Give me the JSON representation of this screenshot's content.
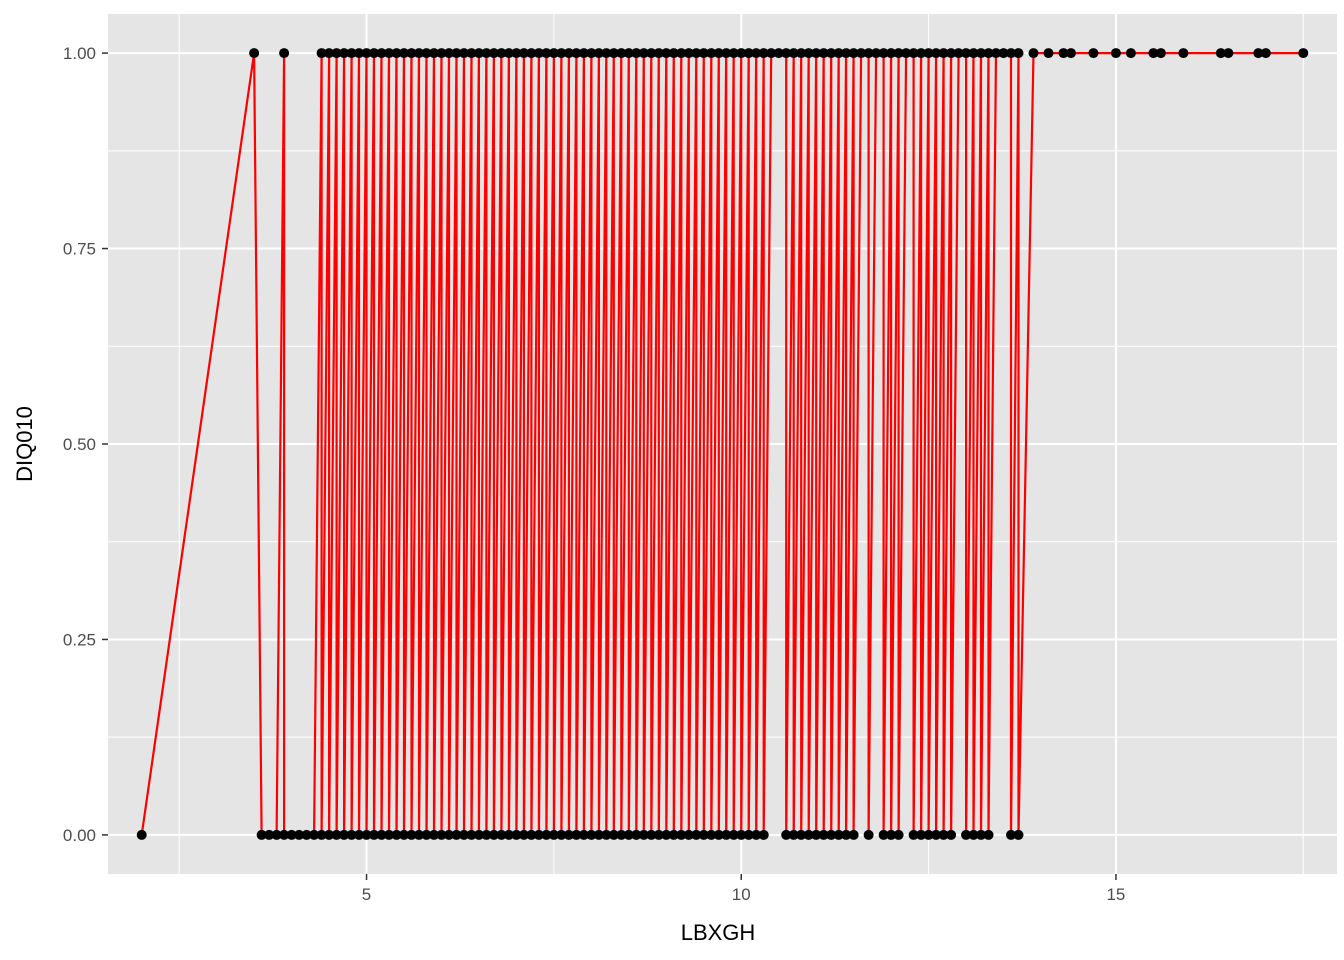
{
  "chart_data": {
    "type": "scatter",
    "xlabel": "LBXGH",
    "ylabel": "DIQ010",
    "xlim": [
      1.55,
      17.95
    ],
    "ylim": [
      -0.05,
      1.05
    ],
    "x_ticks": [
      5,
      10,
      15
    ],
    "x_tick_labels": [
      "5",
      "10",
      "15"
    ],
    "x_minor_ticks": [
      2.5,
      7.5,
      12.5,
      17.5
    ],
    "y_ticks": [
      0,
      0.25,
      0.5,
      0.75,
      1
    ],
    "y_tick_labels": [
      "0.00",
      "0.25",
      "0.50",
      "0.75",
      "1.00"
    ],
    "y_minor_ticks": [
      0.125,
      0.375,
      0.625,
      0.875
    ],
    "grid": true,
    "colors": {
      "panel_background": "#e5e5e5",
      "grid_line": "#ffffff",
      "point": "#000000",
      "line": "#ff0000"
    },
    "series": [
      {
        "type": "line",
        "points": [
          [
            2.0,
            0
          ],
          [
            3.5,
            1
          ],
          [
            3.6,
            0
          ],
          [
            3.7,
            0
          ],
          [
            3.8,
            0
          ],
          [
            3.9,
            1
          ],
          [
            3.9,
            0
          ],
          [
            4.0,
            0
          ],
          [
            4.1,
            0
          ],
          [
            4.2,
            0
          ],
          [
            4.3,
            0
          ],
          [
            4.4,
            1
          ],
          [
            4.4,
            0
          ],
          [
            4.5,
            1
          ],
          [
            4.5,
            0
          ],
          [
            4.6,
            1
          ],
          [
            4.6,
            0
          ],
          [
            4.7,
            1
          ],
          [
            4.7,
            0
          ],
          [
            4.8,
            1
          ],
          [
            4.8,
            0
          ],
          [
            4.9,
            1
          ],
          [
            4.9,
            0
          ],
          [
            5.0,
            1
          ],
          [
            5.0,
            0
          ],
          [
            5.1,
            1
          ],
          [
            5.1,
            0
          ],
          [
            5.2,
            1
          ],
          [
            5.2,
            0
          ],
          [
            5.3,
            1
          ],
          [
            5.3,
            0
          ],
          [
            5.4,
            1
          ],
          [
            5.4,
            0
          ],
          [
            5.5,
            1
          ],
          [
            5.5,
            0
          ],
          [
            5.6,
            1
          ],
          [
            5.6,
            0
          ],
          [
            5.7,
            1
          ],
          [
            5.7,
            0
          ],
          [
            5.8,
            1
          ],
          [
            5.8,
            0
          ],
          [
            5.9,
            1
          ],
          [
            5.9,
            0
          ],
          [
            6.0,
            1
          ],
          [
            6.0,
            0
          ],
          [
            6.1,
            1
          ],
          [
            6.1,
            0
          ],
          [
            6.2,
            1
          ],
          [
            6.2,
            0
          ],
          [
            6.3,
            1
          ],
          [
            6.3,
            0
          ],
          [
            6.4,
            1
          ],
          [
            6.4,
            0
          ],
          [
            6.5,
            1
          ],
          [
            6.5,
            0
          ],
          [
            6.6,
            1
          ],
          [
            6.6,
            0
          ],
          [
            6.7,
            1
          ],
          [
            6.7,
            0
          ],
          [
            6.8,
            1
          ],
          [
            6.8,
            0
          ],
          [
            6.9,
            1
          ],
          [
            6.9,
            0
          ],
          [
            7.0,
            1
          ],
          [
            7.0,
            0
          ],
          [
            7.1,
            1
          ],
          [
            7.1,
            0
          ],
          [
            7.2,
            1
          ],
          [
            7.2,
            0
          ],
          [
            7.3,
            1
          ],
          [
            7.3,
            0
          ],
          [
            7.4,
            1
          ],
          [
            7.4,
            0
          ],
          [
            7.5,
            1
          ],
          [
            7.5,
            0
          ],
          [
            7.6,
            1
          ],
          [
            7.6,
            0
          ],
          [
            7.7,
            1
          ],
          [
            7.7,
            0
          ],
          [
            7.8,
            1
          ],
          [
            7.8,
            0
          ],
          [
            7.9,
            1
          ],
          [
            7.9,
            0
          ],
          [
            8.0,
            1
          ],
          [
            8.0,
            0
          ],
          [
            8.1,
            1
          ],
          [
            8.1,
            0
          ],
          [
            8.2,
            1
          ],
          [
            8.2,
            0
          ],
          [
            8.3,
            1
          ],
          [
            8.3,
            0
          ],
          [
            8.4,
            1
          ],
          [
            8.4,
            0
          ],
          [
            8.5,
            1
          ],
          [
            8.5,
            0
          ],
          [
            8.6,
            1
          ],
          [
            8.6,
            0
          ],
          [
            8.7,
            1
          ],
          [
            8.7,
            0
          ],
          [
            8.8,
            1
          ],
          [
            8.8,
            0
          ],
          [
            8.9,
            1
          ],
          [
            8.9,
            0
          ],
          [
            9.0,
            1
          ],
          [
            9.0,
            0
          ],
          [
            9.1,
            1
          ],
          [
            9.1,
            0
          ],
          [
            9.2,
            1
          ],
          [
            9.2,
            0
          ],
          [
            9.3,
            1
          ],
          [
            9.3,
            0
          ],
          [
            9.4,
            1
          ],
          [
            9.4,
            0
          ],
          [
            9.5,
            1
          ],
          [
            9.5,
            0
          ],
          [
            9.6,
            1
          ],
          [
            9.6,
            0
          ],
          [
            9.7,
            1
          ],
          [
            9.7,
            0
          ],
          [
            9.8,
            1
          ],
          [
            9.8,
            0
          ],
          [
            9.9,
            1
          ],
          [
            9.9,
            0
          ],
          [
            10.0,
            1
          ],
          [
            10.0,
            0
          ],
          [
            10.1,
            1
          ],
          [
            10.1,
            0
          ],
          [
            10.2,
            1
          ],
          [
            10.2,
            0
          ],
          [
            10.3,
            1
          ],
          [
            10.3,
            0
          ],
          [
            10.4,
            1
          ],
          [
            10.5,
            1
          ],
          [
            10.6,
            1
          ],
          [
            10.6,
            0
          ],
          [
            10.7,
            1
          ],
          [
            10.7,
            0
          ],
          [
            10.8,
            1
          ],
          [
            10.8,
            0
          ],
          [
            10.9,
            1
          ],
          [
            10.9,
            0
          ],
          [
            11.0,
            1
          ],
          [
            11.0,
            0
          ],
          [
            11.1,
            1
          ],
          [
            11.1,
            0
          ],
          [
            11.2,
            1
          ],
          [
            11.2,
            0
          ],
          [
            11.3,
            1
          ],
          [
            11.3,
            0
          ],
          [
            11.4,
            1
          ],
          [
            11.4,
            0
          ],
          [
            11.5,
            1
          ],
          [
            11.5,
            0
          ],
          [
            11.6,
            1
          ],
          [
            11.7,
            1
          ],
          [
            11.7,
            0
          ],
          [
            11.8,
            1
          ],
          [
            11.9,
            1
          ],
          [
            11.9,
            0
          ],
          [
            12.0,
            1
          ],
          [
            12.0,
            0
          ],
          [
            12.1,
            1
          ],
          [
            12.1,
            0
          ],
          [
            12.2,
            1
          ],
          [
            12.3,
            1
          ],
          [
            12.3,
            0
          ],
          [
            12.4,
            1
          ],
          [
            12.4,
            0
          ],
          [
            12.5,
            1
          ],
          [
            12.5,
            0
          ],
          [
            12.6,
            1
          ],
          [
            12.6,
            0
          ],
          [
            12.7,
            1
          ],
          [
            12.7,
            0
          ],
          [
            12.8,
            1
          ],
          [
            12.8,
            0
          ],
          [
            12.9,
            1
          ],
          [
            13.0,
            1
          ],
          [
            13.0,
            0
          ],
          [
            13.1,
            1
          ],
          [
            13.1,
            0
          ],
          [
            13.2,
            1
          ],
          [
            13.2,
            0
          ],
          [
            13.3,
            1
          ],
          [
            13.3,
            0
          ],
          [
            13.4,
            1
          ],
          [
            13.5,
            1
          ],
          [
            13.6,
            1
          ],
          [
            13.6,
            0
          ],
          [
            13.7,
            1
          ],
          [
            13.7,
            0
          ],
          [
            13.9,
            1
          ],
          [
            14.1,
            1
          ],
          [
            14.3,
            1
          ],
          [
            14.4,
            1
          ],
          [
            14.7,
            1
          ],
          [
            15.0,
            1
          ],
          [
            15.2,
            1
          ],
          [
            15.5,
            1
          ],
          [
            15.6,
            1
          ],
          [
            15.9,
            1
          ],
          [
            16.4,
            1
          ],
          [
            16.5,
            1
          ],
          [
            16.9,
            1
          ],
          [
            17.0,
            1
          ],
          [
            17.5,
            1
          ]
        ]
      }
    ]
  }
}
